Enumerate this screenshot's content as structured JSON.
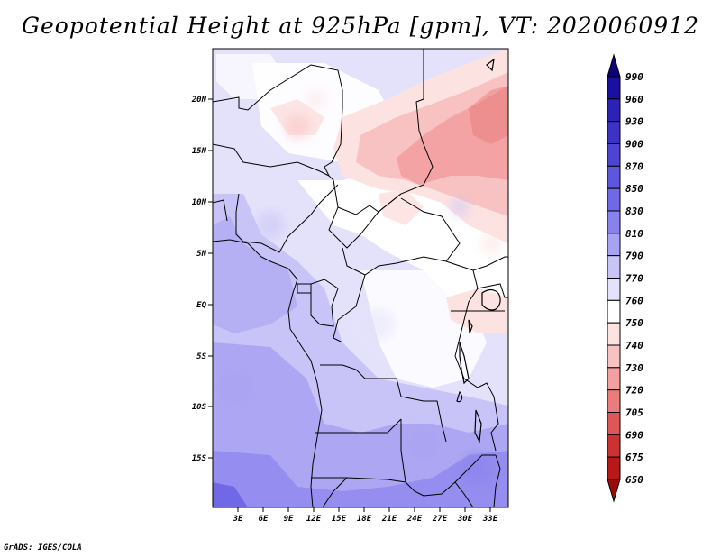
{
  "title": "Geopotential Height at 925hPa [gpm], VT: 2020060912",
  "credit": "GrADS: IGES/COLA",
  "map": {
    "variable": "Geopotential Height",
    "level": "925hPa",
    "units": "gpm",
    "valid_time": "2020060912",
    "lat_labels": [
      "20N",
      "15N",
      "10N",
      "5N",
      "EQ",
      "5S",
      "10S",
      "15S"
    ],
    "lon_labels": [
      "3E",
      "6E",
      "9E",
      "12E",
      "15E",
      "18E",
      "21E",
      "24E",
      "27E",
      "30E",
      "33E"
    ]
  },
  "colorbar": {
    "levels": [
      "990",
      "960",
      "930",
      "900",
      "870",
      "850",
      "830",
      "810",
      "790",
      "770",
      "760",
      "750",
      "740",
      "730",
      "720",
      "705",
      "690",
      "675",
      "650"
    ],
    "colors": [
      "#0d0078",
      "#1a0fa0",
      "#2c22b8",
      "#3c32c6",
      "#4d44d2",
      "#5e56dc",
      "#7068e4",
      "#8a82ec",
      "#a8a2f2",
      "#c8c4f8",
      "#e4e2fb",
      "#ffffff",
      "#fde2e2",
      "#f9c2c2",
      "#f2a0a0",
      "#ea7c7c",
      "#de5656",
      "#cc3232",
      "#b81818",
      "#9c0a0a"
    ]
  }
}
